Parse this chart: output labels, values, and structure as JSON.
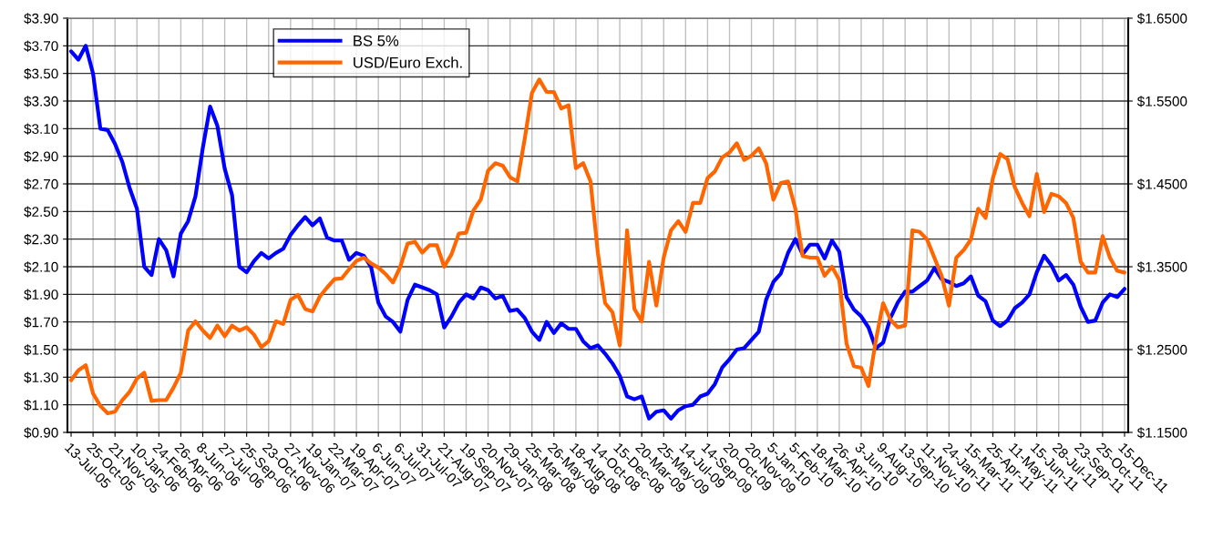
{
  "chart_data": {
    "type": "line",
    "categories": [
      "13-Jul-05",
      null,
      null,
      "25-Oct-05",
      null,
      null,
      "21-Nov-05",
      null,
      null,
      "10-Jan-06",
      null,
      null,
      "24-Feb-06",
      null,
      null,
      "26-Apr-06",
      null,
      null,
      "8-Jun-06",
      null,
      null,
      "27-Jul-06",
      null,
      null,
      "25-Sep-06",
      null,
      null,
      "23-Oct-06",
      null,
      null,
      "27-Nov-06",
      null,
      null,
      "19-Jan-07",
      null,
      null,
      "22-Mar-07",
      null,
      null,
      "19-Apr-07",
      null,
      null,
      "6-Jun-07",
      null,
      null,
      "6-Jul-07",
      null,
      null,
      "31-Jul-07",
      null,
      null,
      "21-Aug-07",
      null,
      null,
      "19-Sep-07",
      null,
      null,
      "20-Nov-07",
      null,
      null,
      "29-Jan-08",
      null,
      null,
      "25-Mar-08",
      null,
      null,
      "26-May-08",
      null,
      null,
      "18-Aug-08",
      null,
      null,
      "14-Oct-08",
      null,
      null,
      "15-Dec-08",
      null,
      null,
      "20-Mar-09",
      null,
      null,
      "25-May-09",
      null,
      null,
      "14-Jul-09",
      null,
      null,
      "14-Sep-09",
      null,
      null,
      "20-Oct-09",
      null,
      null,
      "20-Nov-09",
      null,
      null,
      "5-Jan-10",
      null,
      null,
      "5-Feb-10",
      null,
      null,
      "18-Mar-10",
      null,
      null,
      "26-Apr-10",
      null,
      null,
      "3-Jun-10",
      null,
      null,
      "9-Aug-10",
      null,
      null,
      "13-Sep-10",
      null,
      null,
      "11-Nov-10",
      null,
      null,
      "24-Jan-11",
      null,
      null,
      "15-Mar-11",
      null,
      null,
      "25-Apr-11",
      null,
      null,
      "11-May-11",
      null,
      null,
      "15-Jun-11",
      null,
      null,
      "28-Jul-11",
      null,
      null,
      "23-Sep-11",
      null,
      null,
      "25-Oct-11",
      null,
      null,
      "15-Dec-11"
    ],
    "series": [
      {
        "name": "BS 5%",
        "color": "#0000ff",
        "values": [
          3.66,
          3.6,
          3.7,
          3.5,
          3.1,
          3.09,
          2.99,
          2.86,
          2.67,
          2.52,
          2.1,
          2.04,
          2.3,
          2.22,
          2.03,
          2.34,
          2.43,
          2.61,
          2.96,
          3.26,
          3.12,
          2.81,
          2.62,
          2.1,
          2.06,
          2.14,
          2.2,
          2.16,
          2.2,
          2.23,
          2.33,
          2.4,
          2.46,
          2.4,
          2.45,
          2.31,
          2.29,
          2.29,
          2.15,
          2.2,
          2.18,
          2.1,
          1.84,
          1.74,
          1.7,
          1.63,
          1.86,
          1.97,
          1.95,
          1.93,
          1.9,
          1.66,
          1.74,
          1.84,
          1.9,
          1.87,
          1.95,
          1.93,
          1.87,
          1.89,
          1.78,
          1.79,
          1.73,
          1.63,
          1.57,
          1.7,
          1.62,
          1.69,
          1.65,
          1.65,
          1.56,
          1.51,
          1.53,
          1.47,
          1.4,
          1.31,
          1.16,
          1.14,
          1.16,
          1.0,
          1.05,
          1.06,
          1.0,
          1.06,
          1.09,
          1.1,
          1.16,
          1.18,
          1.25,
          1.37,
          1.43,
          1.5,
          1.51,
          1.57,
          1.63,
          1.86,
          1.99,
          2.05,
          2.2,
          2.3,
          2.19,
          2.26,
          2.26,
          2.16,
          2.29,
          2.21,
          1.88,
          1.79,
          1.74,
          1.66,
          1.51,
          1.55,
          1.73,
          1.84,
          1.92,
          1.92,
          1.96,
          2.0,
          2.09,
          2.01,
          1.99,
          1.96,
          1.98,
          2.03,
          1.89,
          1.85,
          1.71,
          1.67,
          1.71,
          1.8,
          1.84,
          1.9,
          2.06,
          2.18,
          2.11,
          2.0,
          2.04,
          1.97,
          1.81,
          1.7,
          1.71,
          1.84,
          1.9,
          1.88,
          1.94
        ]
      },
      {
        "name": "USD/Euro Exch.",
        "color": "#ff6600",
        "axis": "y2",
        "values": [
          1.213,
          1.225,
          1.231,
          1.197,
          1.182,
          1.173,
          1.175,
          1.189,
          1.199,
          1.215,
          1.222,
          1.188,
          1.189,
          1.189,
          1.204,
          1.222,
          1.273,
          1.284,
          1.273,
          1.264,
          1.279,
          1.266,
          1.279,
          1.273,
          1.277,
          1.268,
          1.253,
          1.26,
          1.284,
          1.281,
          1.31,
          1.316,
          1.299,
          1.296,
          1.314,
          1.325,
          1.335,
          1.336,
          1.347,
          1.357,
          1.361,
          1.354,
          1.349,
          1.341,
          1.331,
          1.35,
          1.378,
          1.38,
          1.367,
          1.376,
          1.376,
          1.35,
          1.365,
          1.39,
          1.391,
          1.418,
          1.431,
          1.466,
          1.475,
          1.472,
          1.458,
          1.453,
          1.504,
          1.56,
          1.576,
          1.561,
          1.561,
          1.541,
          1.545,
          1.469,
          1.475,
          1.453,
          1.367,
          1.306,
          1.295,
          1.255,
          1.394,
          1.299,
          1.284,
          1.356,
          1.303,
          1.361,
          1.394,
          1.405,
          1.392,
          1.427,
          1.427,
          1.457,
          1.465,
          1.482,
          1.488,
          1.499,
          1.479,
          1.484,
          1.493,
          1.475,
          1.431,
          1.451,
          1.453,
          1.42,
          1.363,
          1.361,
          1.361,
          1.339,
          1.35,
          1.334,
          1.257,
          1.23,
          1.228,
          1.206,
          1.261,
          1.306,
          1.286,
          1.277,
          1.279,
          1.394,
          1.392,
          1.383,
          1.361,
          1.339,
          1.303,
          1.361,
          1.37,
          1.383,
          1.42,
          1.409,
          1.457,
          1.486,
          1.48,
          1.446,
          1.427,
          1.411,
          1.462,
          1.416,
          1.438,
          1.435,
          1.427,
          1.409,
          1.356,
          1.343,
          1.343,
          1.387,
          1.361,
          1.345,
          1.343
        ]
      }
    ],
    "ylim": [
      0.9,
      3.9
    ],
    "yticks": [
      {
        "value": 0.9,
        "label": "$0.90"
      },
      {
        "value": 1.1,
        "label": "$1.10"
      },
      {
        "value": 1.3,
        "label": "$1.30"
      },
      {
        "value": 1.5,
        "label": "$1.50"
      },
      {
        "value": 1.7,
        "label": "$1.70"
      },
      {
        "value": 1.9,
        "label": "$1.90"
      },
      {
        "value": 2.1,
        "label": "$2.10"
      },
      {
        "value": 2.3,
        "label": "$2.30"
      },
      {
        "value": 2.5,
        "label": "$2.50"
      },
      {
        "value": 2.7,
        "label": "$2.70"
      },
      {
        "value": 2.9,
        "label": "$2.90"
      },
      {
        "value": 3.1,
        "label": "$3.10"
      },
      {
        "value": 3.3,
        "label": "$3.30"
      },
      {
        "value": 3.5,
        "label": "$3.50"
      },
      {
        "value": 3.7,
        "label": "$3.70"
      },
      {
        "value": 3.9,
        "label": "$3.90"
      }
    ],
    "y2lim": [
      1.15,
      1.65
    ],
    "y2ticks": [
      {
        "value": 1.15,
        "label": "$1.1500"
      },
      {
        "value": 1.25,
        "label": "$1.2500"
      },
      {
        "value": 1.35,
        "label": "$1.3500"
      },
      {
        "value": 1.45,
        "label": "$1.4500"
      },
      {
        "value": 1.55,
        "label": "$1.5500"
      },
      {
        "value": 1.65,
        "label": "$1.6500"
      }
    ],
    "grid": true,
    "legend": "top left"
  }
}
